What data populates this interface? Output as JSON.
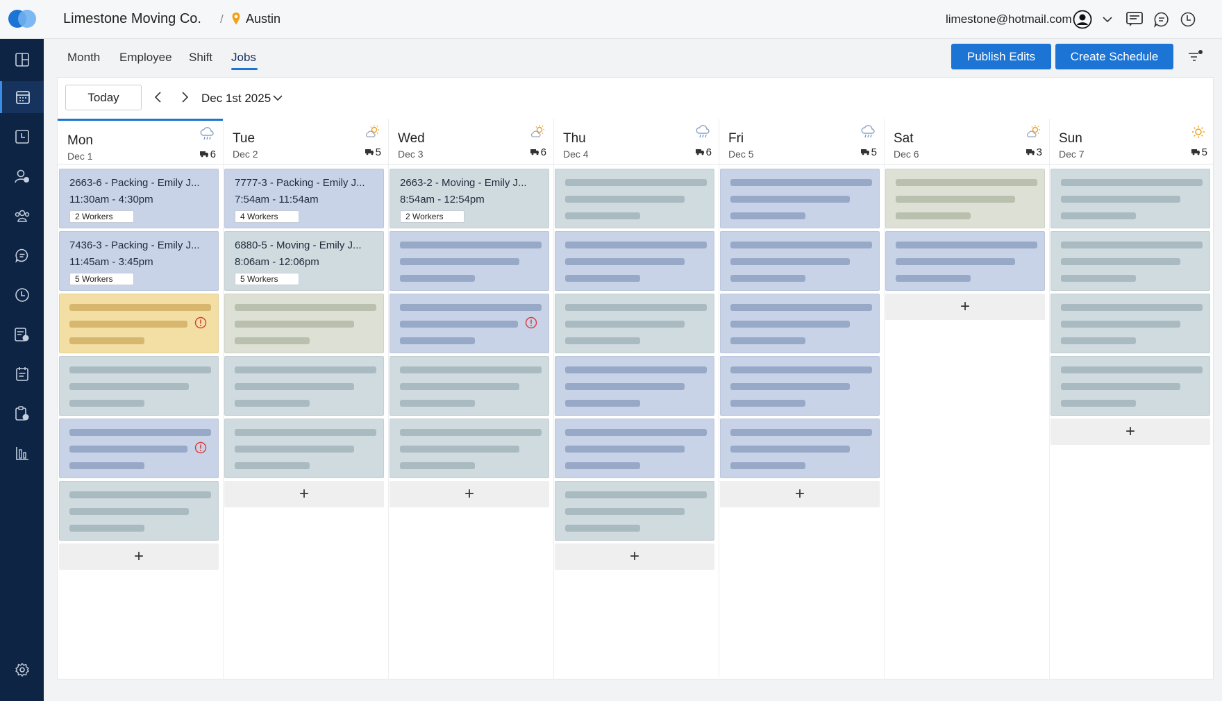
{
  "header": {
    "company": "Limestone Moving Co.",
    "separator": "/",
    "location": "Austin",
    "email": "limestone@hotmail.com"
  },
  "tabs": [
    {
      "label": "Month",
      "active": false
    },
    {
      "label": "Employee",
      "active": false
    },
    {
      "label": "Shift",
      "active": false
    },
    {
      "label": "Jobs",
      "active": true
    }
  ],
  "actions": {
    "publish": "Publish Edits",
    "create": "Create Schedule"
  },
  "toolbar": {
    "today": "Today",
    "date_range": "Dec 1st 2025"
  },
  "sidebar": {
    "items": [
      "dashboard-icon",
      "calendar-icon",
      "clock-in-icon",
      "employee-help-icon",
      "team-icon",
      "chat-icon",
      "time-icon",
      "timesheet-icon",
      "notes-icon",
      "checklist-icon",
      "reports-icon",
      "settings-icon"
    ],
    "active": "calendar-icon"
  },
  "colors": {
    "accent": "#1c74d4",
    "sidebar": "#0d2444",
    "card_blue": "#c8d3e8",
    "card_gray": "#d0dbdf",
    "card_olive": "#dde0d4",
    "card_yellow": "#f3dea4",
    "warning": "#d93a3a"
  },
  "days": [
    {
      "name": "Mon",
      "date": "Dec 1",
      "weather": "rain",
      "trucks": "6",
      "jobs": [
        {
          "title": "2663-6 - Packing - Emily J...",
          "time": "11:30am - 4:30pm",
          "workers": "2 Workers",
          "color": "blue"
        },
        {
          "title": "7436-3 - Packing - Emily J...",
          "time": "11:45am - 3:45pm",
          "workers": "5 Workers",
          "color": "blue"
        },
        {
          "color": "yellow",
          "warning": true
        },
        {
          "color": "gray"
        },
        {
          "color": "blue",
          "warning": true
        },
        {
          "color": "gray"
        }
      ]
    },
    {
      "name": "Tue",
      "date": "Dec 2",
      "weather": "sun-cloud",
      "trucks": "5",
      "jobs": [
        {
          "title": "7777-3 - Packing - Emily J...",
          "time": "7:54am - 11:54am",
          "workers": "4 Workers",
          "color": "blue"
        },
        {
          "title": "6880-5 - Moving - Emily J...",
          "time": "8:06am - 12:06pm",
          "workers": "5 Workers",
          "color": "gray"
        },
        {
          "color": "olive"
        },
        {
          "color": "gray"
        },
        {
          "color": "gray"
        }
      ]
    },
    {
      "name": "Wed",
      "date": "Dec 3",
      "weather": "sun-cloud",
      "trucks": "6",
      "jobs": [
        {
          "title": "2663-2 - Moving - Emily J...",
          "time": "8:54am - 12:54pm",
          "workers": "2 Workers",
          "color": "gray"
        },
        {
          "color": "blue"
        },
        {
          "color": "blue",
          "warning": true
        },
        {
          "color": "gray"
        },
        {
          "color": "gray"
        }
      ]
    },
    {
      "name": "Thu",
      "date": "Dec 4",
      "weather": "rain",
      "trucks": "6",
      "jobs": [
        {
          "color": "gray"
        },
        {
          "color": "blue"
        },
        {
          "color": "gray"
        },
        {
          "color": "blue"
        },
        {
          "color": "blue"
        },
        {
          "color": "gray"
        }
      ]
    },
    {
      "name": "Fri",
      "date": "Dec 5",
      "weather": "rain",
      "trucks": "5",
      "jobs": [
        {
          "color": "blue"
        },
        {
          "color": "blue"
        },
        {
          "color": "blue"
        },
        {
          "color": "blue"
        },
        {
          "color": "blue"
        }
      ]
    },
    {
      "name": "Sat",
      "date": "Dec 6",
      "weather": "sun-cloud",
      "trucks": "3",
      "jobs": [
        {
          "color": "olive"
        },
        {
          "color": "blue"
        }
      ]
    },
    {
      "name": "Sun",
      "date": "Dec 7",
      "weather": "sun",
      "trucks": "5",
      "jobs": [
        {
          "color": "gray"
        },
        {
          "color": "gray"
        },
        {
          "color": "gray"
        },
        {
          "color": "gray"
        }
      ]
    }
  ],
  "add_label": "+"
}
